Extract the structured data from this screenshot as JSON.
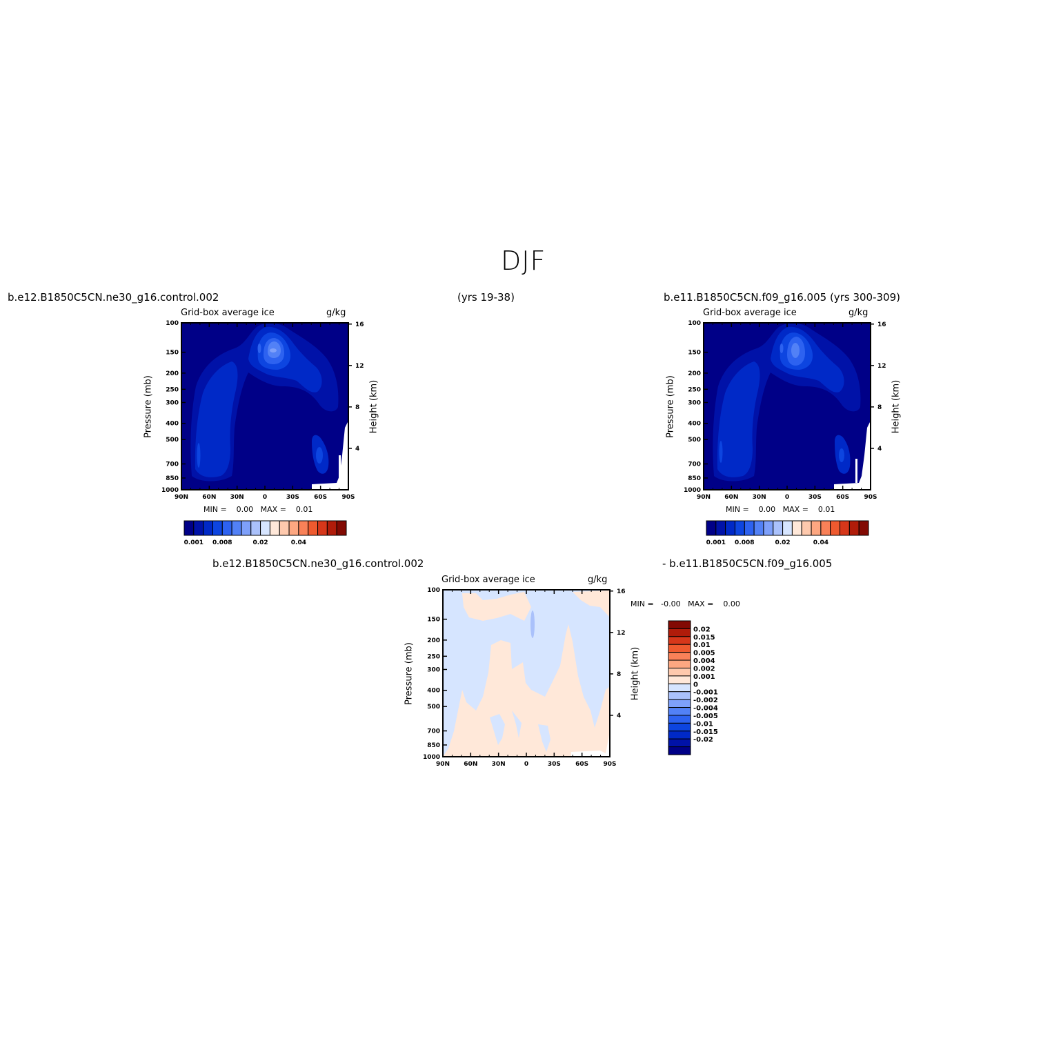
{
  "page": {
    "title": "DJF",
    "left_run": "b.e12.B1850C5CN.ne30_g16.control.002",
    "years": "(yrs 19-38)",
    "right_run": "b.e11.B1850C5CN.f09_g16.005 (yrs 300-309)",
    "diff_left": "b.e12.B1850C5CN.ne30_g16.control.002",
    "diff_right": "- b.e11.B1850C5CN.f09_g16.005"
  },
  "colors": {
    "background": "#ffffff",
    "field_palette": [
      "#000087",
      "#0012a8",
      "#0029c7",
      "#0d45e0",
      "#2d62f0",
      "#5281f6",
      "#7ea0fa",
      "#aac1fb",
      "#d6e5ff",
      "#ffe8d9",
      "#fec9ad",
      "#fda781",
      "#f98158",
      "#ee5a2f",
      "#d6371a",
      "#b01c0a",
      "#820a03"
    ],
    "diff_palette": [
      "#000087",
      "#0012a8",
      "#0029c7",
      "#0d45e0",
      "#2d62f0",
      "#5281f6",
      "#7ea0fa",
      "#aac1fb",
      "#d6e5ff",
      "#ffe8d9",
      "#fec9ad",
      "#fda781",
      "#f98158",
      "#ee5a2f",
      "#d6371a",
      "#b01c0a",
      "#820a03"
    ]
  },
  "chart_data": [
    {
      "id": "panel_left",
      "type": "heatmap",
      "title": "Grid-box average ice",
      "units": "g/kg",
      "xlabel": "",
      "ylabel": "Pressure (mb)",
      "y2label": "Height (km)",
      "x_ticks": [
        "90N",
        "60N",
        "30N",
        "0",
        "30S",
        "60S",
        "90S"
      ],
      "y_ticks": [
        "100",
        "150",
        "200",
        "250",
        "300",
        "400",
        "500",
        "700",
        "850",
        "1000"
      ],
      "y2_ticks": [
        "16",
        "12",
        "8",
        "4"
      ],
      "xlim": [
        90,
        -90
      ],
      "ylim": [
        1000,
        100
      ],
      "y_scale": "log",
      "stats": "MIN =    0.00   MAX =    0.01",
      "colorbar": {
        "orientation": "horizontal",
        "labels": [
          "0.001",
          "0.008",
          "0.02",
          "0.04"
        ]
      },
      "features": [
        {
          "lat": 70,
          "p": 550,
          "value": 0.0025
        },
        {
          "lat": 74,
          "p": 820,
          "value": 0.003
        },
        {
          "lat": 78,
          "p": 800,
          "value": 0.004
        },
        {
          "lat": -5,
          "p": 240,
          "value": 0.005
        },
        {
          "lat": -12,
          "p": 230,
          "value": 0.008
        },
        {
          "lat": -12,
          "p": 240,
          "value": 0.012
        },
        {
          "lat": -55,
          "p": 420,
          "value": 0.002
        },
        {
          "lat": -60,
          "p": 800,
          "value": 0.003
        }
      ]
    },
    {
      "id": "panel_right",
      "type": "heatmap",
      "title": "Grid-box average ice",
      "units": "g/kg",
      "xlabel": "",
      "ylabel": "Pressure (mb)",
      "y2label": "Height (km)",
      "x_ticks": [
        "90N",
        "60N",
        "30N",
        "0",
        "30S",
        "60S",
        "90S"
      ],
      "y_ticks": [
        "100",
        "150",
        "200",
        "250",
        "300",
        "400",
        "500",
        "700",
        "850",
        "1000"
      ],
      "y2_ticks": [
        "16",
        "12",
        "8",
        "4"
      ],
      "xlim": [
        90,
        -90
      ],
      "ylim": [
        1000,
        100
      ],
      "y_scale": "log",
      "stats": "MIN =    0.00   MAX =    0.01",
      "colorbar": {
        "orientation": "horizontal",
        "labels": [
          "0.001",
          "0.008",
          "0.02",
          "0.04"
        ]
      },
      "features": [
        {
          "lat": 70,
          "p": 550,
          "value": 0.0025
        },
        {
          "lat": 74,
          "p": 820,
          "value": 0.003
        },
        {
          "lat": -10,
          "p": 240,
          "value": 0.006
        },
        {
          "lat": -12,
          "p": 240,
          "value": 0.009
        },
        {
          "lat": -55,
          "p": 420,
          "value": 0.002
        },
        {
          "lat": -58,
          "p": 800,
          "value": 0.003
        }
      ]
    },
    {
      "id": "panel_diff",
      "type": "heatmap",
      "title": "Grid-box average ice",
      "units": "g/kg",
      "xlabel": "",
      "ylabel": "Pressure (mb)",
      "y2label": "Height (km)",
      "x_ticks": [
        "90N",
        "60N",
        "30N",
        "0",
        "30S",
        "60S",
        "90S"
      ],
      "y_ticks": [
        "100",
        "150",
        "200",
        "250",
        "300",
        "400",
        "500",
        "700",
        "850",
        "1000"
      ],
      "y2_ticks": [
        "16",
        "12",
        "8",
        "4"
      ],
      "xlim": [
        90,
        -90
      ],
      "ylim": [
        1000,
        100
      ],
      "y_scale": "log",
      "stats": "MIN =   -0.00   MAX =    0.00",
      "colorbar": {
        "orientation": "vertical",
        "labels": [
          "0.02",
          "0.015",
          "0.01",
          "0.005",
          "0.004",
          "0.002",
          "0.001",
          "0",
          "-0.001",
          "-0.002",
          "-0.004",
          "-0.005",
          "-0.01",
          "-0.015",
          "-0.02"
        ]
      },
      "features": [
        {
          "region": "lower troposphere 60N-45S",
          "value": 0.0005
        },
        {
          "region": "upper troposphere",
          "value": -0.0005
        },
        {
          "lat": -8,
          "p": 280,
          "value": -0.0015
        }
      ]
    }
  ]
}
